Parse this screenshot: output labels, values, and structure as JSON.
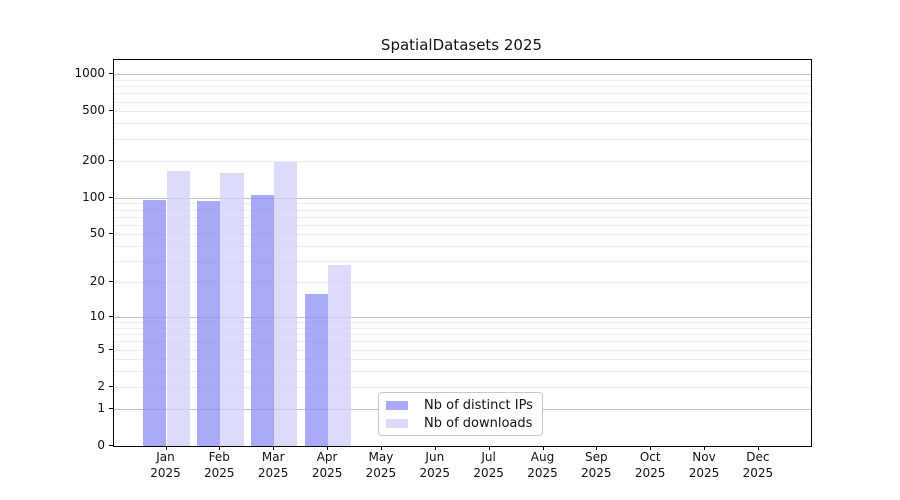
{
  "chart_data": {
    "type": "bar",
    "title": "SpatialDatasets 2025",
    "months": [
      "Jan",
      "Feb",
      "Mar",
      "Apr",
      "May",
      "Jun",
      "Jul",
      "Aug",
      "Sep",
      "Oct",
      "Nov",
      "Dec"
    ],
    "year_label": "2025",
    "series": [
      {
        "name": "Nb of distinct IPs",
        "color": "rgba(140,140,244,0.75)",
        "values": [
          95,
          94,
          106,
          16,
          null,
          null,
          null,
          null,
          null,
          null,
          null,
          null
        ]
      },
      {
        "name": "Nb of downloads",
        "color": "rgba(208,208,248,0.75)",
        "values": [
          165,
          158,
          195,
          28,
          null,
          null,
          null,
          null,
          null,
          null,
          null,
          null
        ]
      }
    ],
    "yscale": "symlog-log1p",
    "yticks": [
      0,
      1,
      2,
      5,
      10,
      20,
      50,
      100,
      200,
      500,
      1000
    ],
    "ylim": [
      0,
      1300
    ],
    "grid": true,
    "legend_position": "lower center",
    "xlabel": "",
    "ylabel": ""
  }
}
